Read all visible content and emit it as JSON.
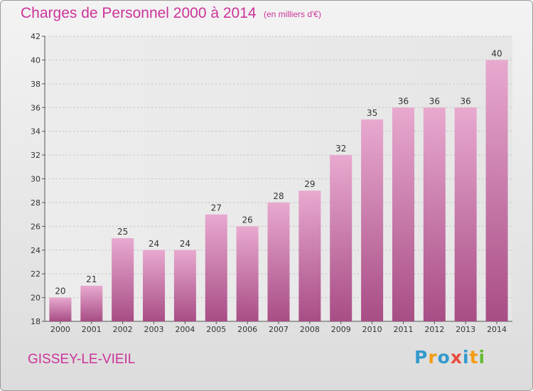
{
  "header": {
    "title": "Charges de Personnel 2000 à 2014",
    "subtitle": "(en milliers d'€)"
  },
  "footer": {
    "commune": "GISSEY-LE-VIEIL",
    "logo": {
      "text": "Proxiti",
      "colors": [
        "#3399cc",
        "#f39c12",
        "#3399cc",
        "#e84c3d",
        "#3399cc",
        "#f39c12",
        "#66bb33"
      ]
    }
  },
  "chart_data": {
    "type": "bar",
    "title": "Charges de Personnel 2000 à 2014",
    "subtitle": "(en milliers d'€)",
    "categories": [
      "2000",
      "2001",
      "2002",
      "2003",
      "2004",
      "2005",
      "2006",
      "2007",
      "2008",
      "2009",
      "2010",
      "2011",
      "2012",
      "2013",
      "2014"
    ],
    "values": [
      20,
      21,
      25,
      24,
      24,
      27,
      26,
      28,
      29,
      32,
      35,
      36,
      36,
      36,
      40
    ],
    "ylim": [
      18,
      42
    ],
    "yticks": [
      18,
      20,
      22,
      24,
      26,
      28,
      30,
      32,
      34,
      36,
      38,
      40,
      42
    ],
    "grid": true,
    "bar_color": "#d46fa8",
    "xlabel": "",
    "ylabel": ""
  }
}
